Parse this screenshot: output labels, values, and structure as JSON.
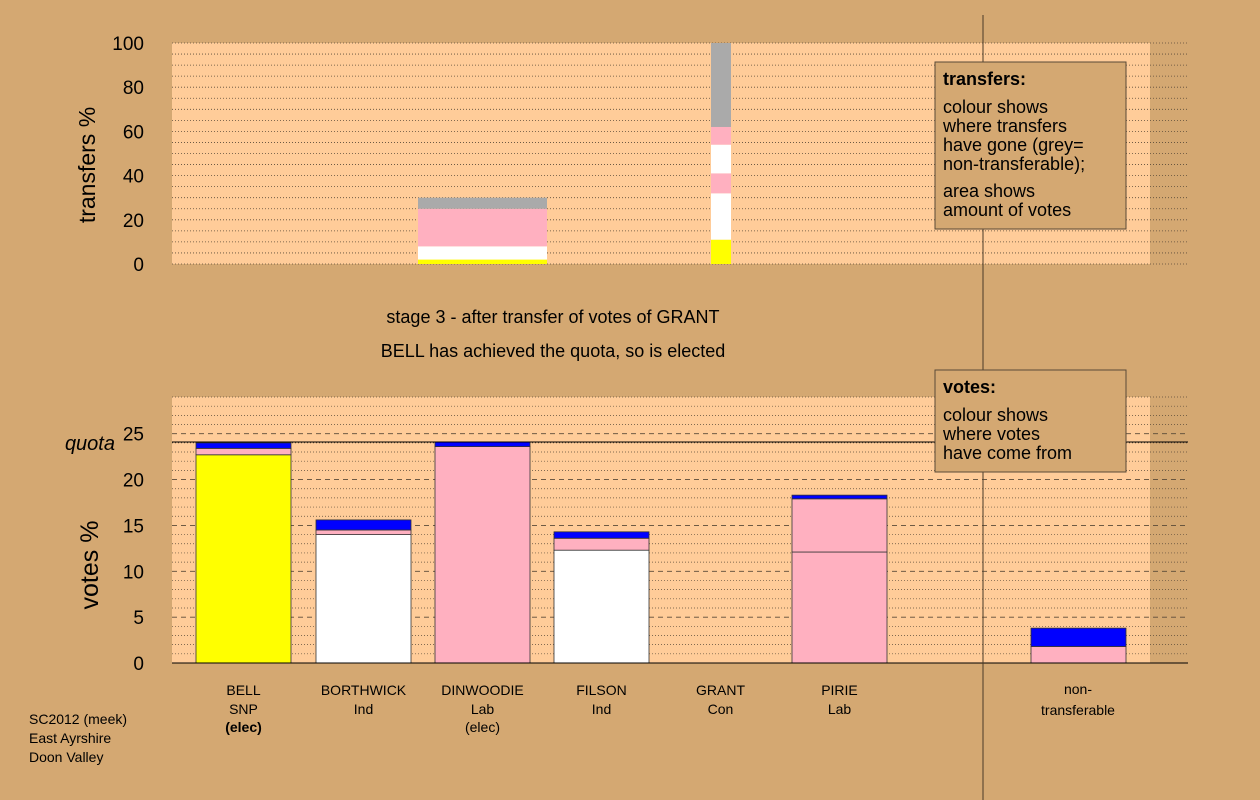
{
  "colors": {
    "background": "#D4A872",
    "plot_background": "#FFCC99",
    "snp": "#FFFF00",
    "independent": "#FFFFFF",
    "labour": "#FFB0C0",
    "conservative": "#0000FF",
    "non_transferable": "#AAAAAA",
    "legend_box": "#D4A872"
  },
  "chart_data": [
    {
      "type": "bar",
      "role": "transfers",
      "ylabel": "transfers %",
      "ylim": [
        0,
        100
      ],
      "yticks": [
        0,
        20,
        40,
        60,
        80,
        100
      ],
      "grid": "dotted every 5",
      "columns": [
        {
          "candidate": "DINWOODIE",
          "segments": [
            {
              "color": "snp",
              "value": 2
            },
            {
              "color": "independent",
              "value": 6
            },
            {
              "color": "labour",
              "value": 17
            },
            {
              "color": "non_transferable",
              "value": 5
            }
          ]
        },
        {
          "candidate": "GRANT",
          "segments": [
            {
              "color": "snp",
              "value": 11
            },
            {
              "color": "independent",
              "value": 21
            },
            {
              "color": "labour",
              "value": 9
            },
            {
              "color": "independent",
              "value": 13
            },
            {
              "color": "labour",
              "value": 8
            },
            {
              "color": "non_transferable",
              "value": 38
            }
          ]
        }
      ]
    },
    {
      "type": "bar",
      "role": "votes",
      "ylabel": "votes %",
      "ylim": [
        0,
        29
      ],
      "yticks": [
        0,
        5,
        10,
        15,
        20,
        25
      ],
      "quota": 24.1,
      "quota_label": "quota",
      "categories": [
        "BELL",
        "BORTHWICK",
        "DINWOODIE",
        "FILSON",
        "GRANT",
        "PIRIE"
      ],
      "parties": [
        "SNP",
        "Ind",
        "Lab",
        "Ind",
        "Con",
        "Lab"
      ],
      "elected_labels": [
        "(elec)",
        "",
        "(elec)",
        "",
        "",
        ""
      ],
      "stacks": [
        [
          {
            "color": "snp",
            "value": 22.7
          },
          {
            "color": "labour",
            "value": 0.7
          },
          {
            "color": "conservative",
            "value": 0.6
          }
        ],
        [
          {
            "color": "independent",
            "value": 14.0
          },
          {
            "color": "labour",
            "value": 0.5
          },
          {
            "color": "conservative",
            "value": 1.1
          }
        ],
        [
          {
            "color": "labour",
            "value": 23.6
          },
          {
            "color": "conservative",
            "value": 0.5
          }
        ],
        [
          {
            "color": "independent",
            "value": 12.3
          },
          {
            "color": "labour",
            "value": 1.3
          },
          {
            "color": "conservative",
            "value": 0.7
          }
        ],
        [],
        [
          {
            "color": "labour",
            "value": 12.1
          },
          {
            "color": "labour",
            "value": 5.8
          },
          {
            "color": "conservative",
            "value": 0.4
          }
        ]
      ],
      "non_transferable": {
        "label_line1": "non-",
        "label_line2": "transferable",
        "stack": [
          {
            "color": "labour",
            "value": 1.8
          },
          {
            "color": "conservative",
            "value": 2.0
          }
        ]
      }
    }
  ],
  "stage": {
    "line1": "stage 3 - after transfer of votes of GRANT",
    "line2": "BELL has achieved the quota, so is elected"
  },
  "legend_transfers": {
    "title": "transfers:",
    "lines": [
      "colour shows",
      "where transfers",
      "have gone (grey=",
      "non-transferable);"
    ],
    "lines2": [
      "area shows",
      "amount of votes"
    ]
  },
  "legend_votes": {
    "title": "votes:",
    "lines": [
      "colour shows",
      "where votes",
      "have come from"
    ]
  },
  "footer": {
    "line1": "SC2012 (meek)",
    "line2": "East Ayrshire",
    "line3": "Doon Valley"
  }
}
